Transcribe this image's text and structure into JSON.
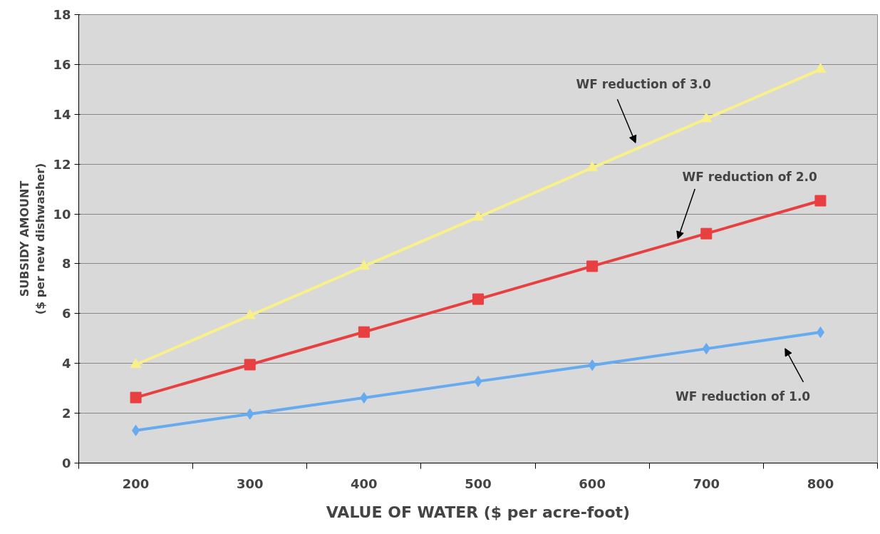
{
  "chart_data": {
    "type": "line",
    "xlabel": "VALUE OF WATER ($ per acre-foot)",
    "ylabel": "SUBSIDY AMOUNT\n($ per new dishwasher)",
    "categories": [
      "200",
      "300",
      "400",
      "500",
      "600",
      "700",
      "800"
    ],
    "series": [
      {
        "name": "WF reduction of 1.0",
        "color": "#66aaf0",
        "marker": "diamond",
        "values": [
          1.31,
          1.97,
          2.62,
          3.28,
          3.93,
          4.59,
          5.25
        ]
      },
      {
        "name": "WF reduction of 2.0",
        "color": "#e84040",
        "marker": "square",
        "values": [
          2.63,
          3.95,
          5.26,
          6.58,
          7.9,
          9.21,
          10.53
        ]
      },
      {
        "name": "WF reduction of 3.0",
        "color": "#f8f08a",
        "marker": "triangle",
        "values": [
          3.95,
          5.92,
          7.9,
          9.87,
          11.85,
          13.82,
          15.8
        ]
      }
    ],
    "ylim": [
      0,
      18
    ],
    "yticks": [
      0,
      2,
      4,
      6,
      8,
      10,
      12,
      14,
      16,
      18
    ],
    "grid": "y"
  }
}
